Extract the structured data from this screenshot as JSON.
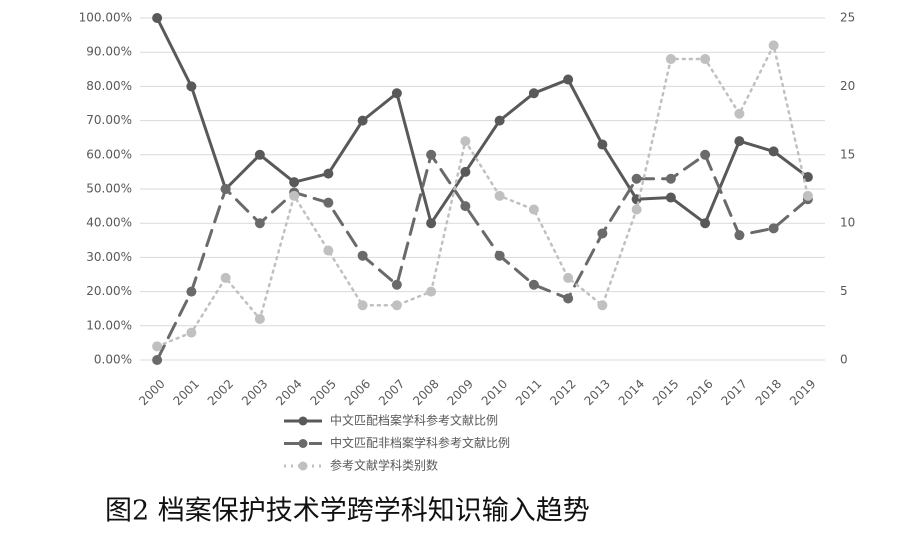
{
  "chart_data": {
    "type": "line",
    "categories": [
      "2000",
      "2001",
      "2002",
      "2003",
      "2004",
      "2005",
      "2006",
      "2007",
      "2008",
      "2009",
      "2010",
      "2011",
      "2012",
      "2013",
      "2014",
      "2015",
      "2016",
      "2017",
      "2018",
      "2019"
    ],
    "series": [
      {
        "name": "中文匹配档案学科参考文献比例",
        "color": "#595959",
        "line_style": "solid",
        "values": [
          100,
          80,
          50,
          60,
          52,
          54.5,
          70,
          78,
          40,
          55,
          70,
          78,
          82,
          63,
          47,
          47.5,
          40,
          64,
          61,
          53.5
        ]
      },
      {
        "name": "中文匹配非档案学科参考文献比例",
        "color": "#6a6a6a",
        "line_style": "dashed",
        "values": [
          0,
          20,
          50,
          40,
          49,
          46,
          30.5,
          22,
          60,
          45,
          30.5,
          22,
          18,
          37,
          53,
          53,
          60,
          36.5,
          38.5,
          47
        ]
      },
      {
        "name": "参考文献学科类别数",
        "color": "#c0c0c0",
        "line_style": "dotted",
        "axis": "y2",
        "values": [
          1,
          2,
          6,
          3,
          12,
          8,
          4,
          4,
          5,
          16,
          12,
          11,
          6,
          4,
          11,
          22,
          22,
          18,
          23,
          12
        ]
      }
    ],
    "ylim": [
      0,
      100
    ],
    "yticks": [
      {
        "value": 0,
        "label": "0.00%"
      },
      {
        "value": 10,
        "label": "10.00%"
      },
      {
        "value": 20,
        "label": "20.00%"
      },
      {
        "value": 30,
        "label": "30.00%"
      },
      {
        "value": 40,
        "label": "40.00%"
      },
      {
        "value": 50,
        "label": "50.00%"
      },
      {
        "value": 60,
        "label": "60.00%"
      },
      {
        "value": 70,
        "label": "70.00%"
      },
      {
        "value": 80,
        "label": "80.00%"
      },
      {
        "value": 90,
        "label": "90.00%"
      },
      {
        "value": 100,
        "label": "100.00%"
      }
    ],
    "y2lim": [
      0,
      25
    ],
    "y2ticks": [
      0,
      5,
      10,
      15,
      20,
      25
    ],
    "grid": true,
    "legend": "bottom",
    "caption": "图2 档案保护技术学跨学科知识输入趋势"
  }
}
